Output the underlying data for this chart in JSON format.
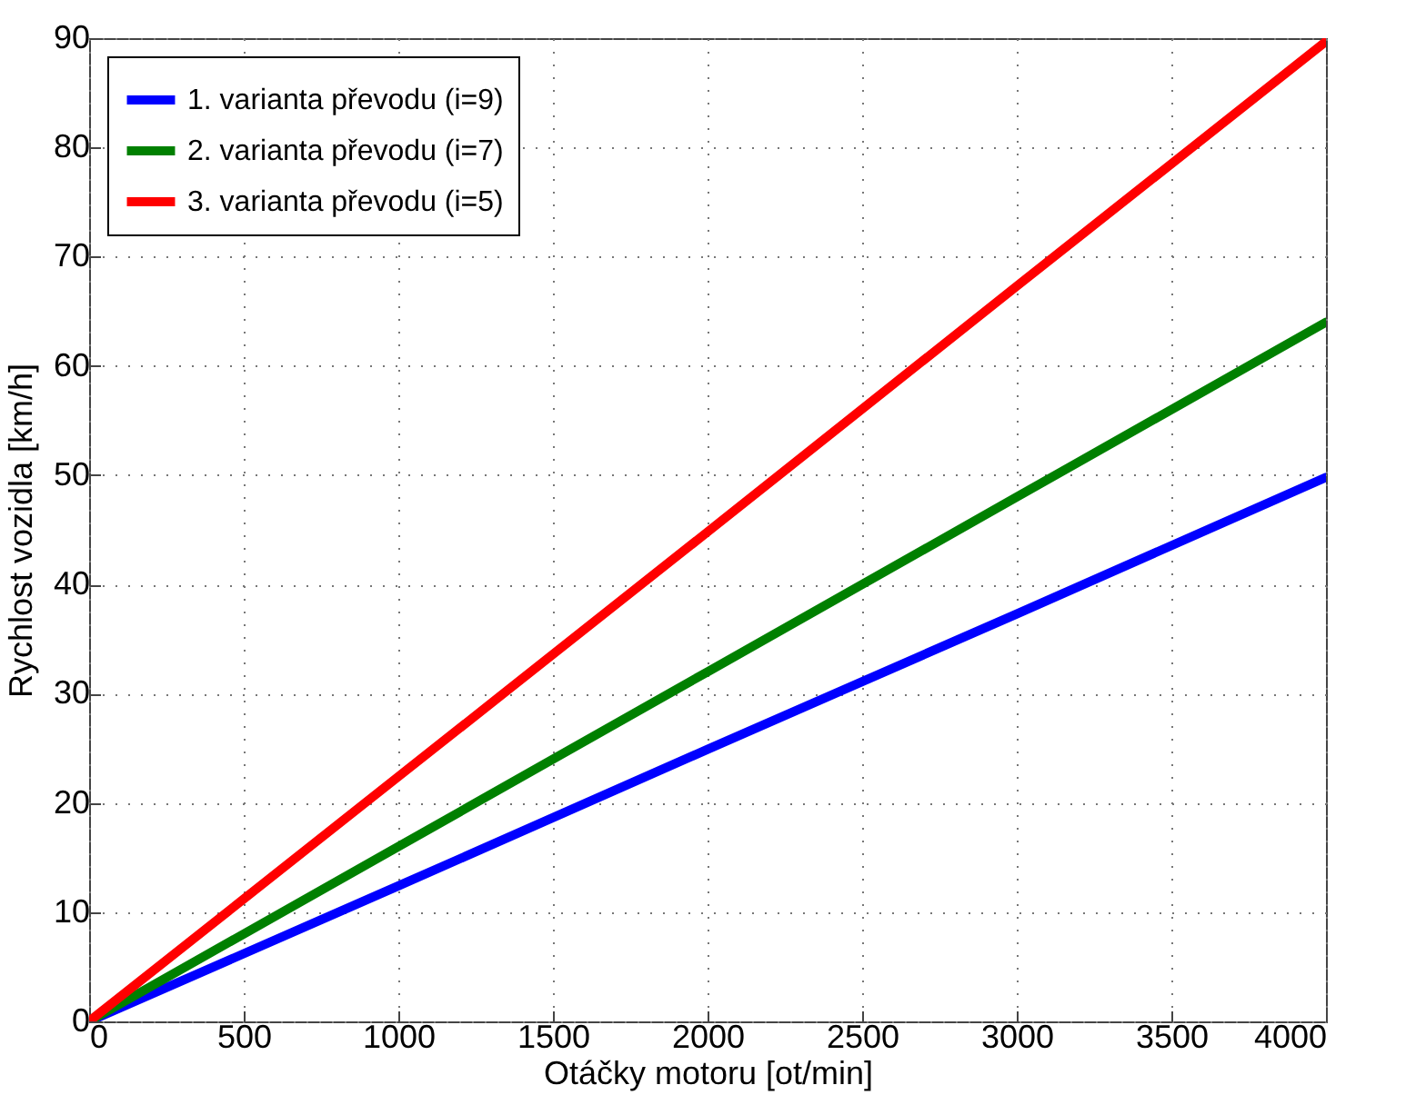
{
  "chart_data": {
    "type": "line",
    "xlabel": "Otáčky motoru [ot/min]",
    "ylabel": "Rychlost vozidla [km/h]",
    "x": [
      0,
      1000,
      2000,
      3000,
      4000
    ],
    "series": [
      {
        "name": "1. varianta převodu (i=9)",
        "color": "#0000ff",
        "values": [
          0,
          12.4,
          24.9,
          37.3,
          49.8
        ]
      },
      {
        "name": "2. varianta převodu (i=7)",
        "color": "#008000",
        "values": [
          0,
          16,
          32,
          48,
          64
        ]
      },
      {
        "name": "3. varianta převodu (i=5)",
        "color": "#ff0000",
        "values": [
          0,
          22.4,
          44.8,
          67.3,
          89.7
        ]
      }
    ],
    "xlim": [
      0,
      4000
    ],
    "xticks": [
      0,
      500,
      1000,
      1500,
      2000,
      2500,
      3000,
      3500,
      4000
    ],
    "ylim": [
      0,
      90
    ],
    "yticks": [
      0,
      10,
      20,
      30,
      40,
      50,
      60,
      70,
      80,
      90
    ],
    "grid": true,
    "legend": "top left",
    "line_style": "solid",
    "marker": "none"
  }
}
